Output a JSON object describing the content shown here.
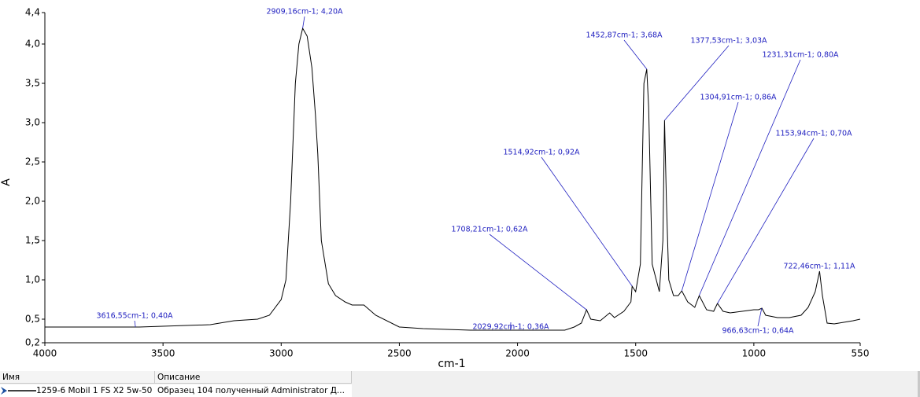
{
  "chart_data": {
    "type": "line",
    "xlabel": "cm-1",
    "ylabel": "A",
    "xlim": [
      4000,
      550
    ],
    "xticks": [
      4000,
      3500,
      3000,
      2500,
      2000,
      1500,
      1000,
      550
    ],
    "ylim": [
      0.2,
      4.4
    ],
    "yticks": [
      {
        "value": 0.2,
        "label": "0,2"
      },
      {
        "value": 0.5,
        "label": "0,5"
      },
      {
        "value": 1.0,
        "label": "1,0"
      },
      {
        "value": 1.5,
        "label": "1,5"
      },
      {
        "value": 2.0,
        "label": "2,0"
      },
      {
        "value": 2.5,
        "label": "2,5"
      },
      {
        "value": 3.0,
        "label": "3,0"
      },
      {
        "value": 3.5,
        "label": "3,5"
      },
      {
        "value": 4.0,
        "label": "4,0"
      },
      {
        "value": 4.4,
        "label": "4,4"
      }
    ],
    "series": [
      {
        "name": "1259-6 Mobil 1 FS X2 5w-50",
        "color": "#000000",
        "x": [
          4000,
          3600,
          3300,
          3200,
          3100,
          3050,
          3000,
          2980,
          2960,
          2940,
          2925,
          2909,
          2890,
          2870,
          2855,
          2845,
          2830,
          2800,
          2770,
          2730,
          2700,
          2650,
          2600,
          2500,
          2400,
          2200,
          2030,
          1800,
          1760,
          1730,
          1708,
          1690,
          1650,
          1610,
          1590,
          1550,
          1520,
          1515,
          1500,
          1480,
          1465,
          1453,
          1445,
          1430,
          1400,
          1385,
          1378,
          1370,
          1360,
          1340,
          1320,
          1305,
          1280,
          1250,
          1231,
          1200,
          1170,
          1154,
          1130,
          1100,
          1050,
          1000,
          980,
          966,
          950,
          900,
          850,
          800,
          770,
          740,
          722,
          710,
          690,
          660,
          620,
          580,
          550
        ],
        "values": [
          0.4,
          0.4,
          0.43,
          0.48,
          0.5,
          0.55,
          0.75,
          1.0,
          2.0,
          3.5,
          4.0,
          4.2,
          4.1,
          3.7,
          3.1,
          2.6,
          1.5,
          0.95,
          0.8,
          0.72,
          0.68,
          0.68,
          0.55,
          0.4,
          0.38,
          0.36,
          0.36,
          0.36,
          0.4,
          0.45,
          0.62,
          0.5,
          0.48,
          0.58,
          0.52,
          0.6,
          0.72,
          0.92,
          0.85,
          1.2,
          3.5,
          3.68,
          3.2,
          1.2,
          0.85,
          1.5,
          3.03,
          2.0,
          1.0,
          0.8,
          0.8,
          0.86,
          0.72,
          0.65,
          0.8,
          0.62,
          0.6,
          0.7,
          0.6,
          0.58,
          0.6,
          0.62,
          0.62,
          0.64,
          0.55,
          0.52,
          0.52,
          0.55,
          0.65,
          0.85,
          1.11,
          0.8,
          0.45,
          0.44,
          0.46,
          0.48,
          0.5
        ]
      }
    ],
    "annotations": [
      {
        "text": "2909,16cm-1; 4,20A",
        "x": 2909.16,
        "y": 4.2
      },
      {
        "text": "1452,87cm-1; 3,68A",
        "x": 1452.87,
        "y": 3.68
      },
      {
        "text": "1377,53cm-1; 3,03A",
        "x": 1377.53,
        "y": 3.03
      },
      {
        "text": "1231,31cm-1; 0,80A",
        "x": 1231.31,
        "y": 0.8
      },
      {
        "text": "1304,91cm-1; 0,86A",
        "x": 1304.91,
        "y": 0.86
      },
      {
        "text": "1514,92cm-1; 0,92A",
        "x": 1514.92,
        "y": 0.92
      },
      {
        "text": "1153,94cm-1; 0,70A",
        "x": 1153.94,
        "y": 0.7
      },
      {
        "text": "1708,21cm-1; 0,62A",
        "x": 1708.21,
        "y": 0.62
      },
      {
        "text": "722,46cm-1; 1,11A",
        "x": 722.46,
        "y": 1.11
      },
      {
        "text": "3616,55cm-1; 0,40A",
        "x": 3616.55,
        "y": 0.4
      },
      {
        "text": "2029,92cm-1; 0,36A",
        "x": 2029.92,
        "y": 0.36
      },
      {
        "text": "966,63cm-1; 0,64A",
        "x": 966.63,
        "y": 0.64
      }
    ]
  },
  "table": {
    "headers": [
      "Имя",
      "Описание"
    ],
    "rows": [
      [
        "1259-6 Mobil 1 FS X2 5w-50",
        "Образец 104 полученный Administrator Д..."
      ]
    ]
  }
}
